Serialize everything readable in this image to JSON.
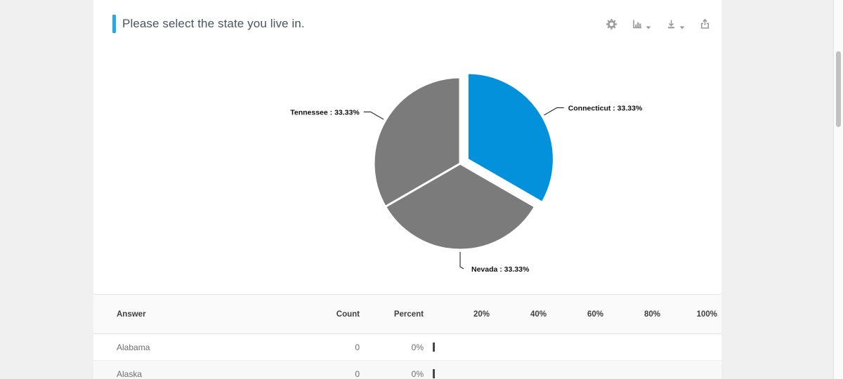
{
  "header": {
    "title": "Please select the state you live in.",
    "accent_color": "#29a9e1",
    "toolbar": {
      "settings_label": "settings",
      "chart_type_label": "chart type",
      "download_label": "download",
      "export_label": "export"
    }
  },
  "chart_data": {
    "type": "pie",
    "title": "Please select the state you live in.",
    "direction": "clockwise",
    "start_angle_deg": 0,
    "legend_position": "none",
    "slices": [
      {
        "label": "Connecticut",
        "value": 33.33,
        "display": "Connecticut : 33.33%",
        "color": "#0291da",
        "exploded": true
      },
      {
        "label": "Nevada",
        "value": 33.33,
        "display": "Nevada : 33.33%",
        "color": "#7b7b7b",
        "exploded": false
      },
      {
        "label": "Tennessee",
        "value": 33.33,
        "display": "Tennessee : 33.33%",
        "color": "#7b7b7b",
        "exploded": false
      }
    ]
  },
  "table": {
    "columns": {
      "answer": "Answer",
      "count": "Count",
      "percent": "Percent"
    },
    "grid_labels": [
      "20%",
      "40%",
      "60%",
      "80%",
      "100%"
    ],
    "rows": [
      {
        "answer": "Alabama",
        "count": "0",
        "percent": "0%",
        "bar_pct": 0
      },
      {
        "answer": "Alaska",
        "count": "0",
        "percent": "0%",
        "bar_pct": 0
      }
    ]
  },
  "colors": {
    "page_bg": "#f0f0f0",
    "bar_tick": "#474747",
    "slice_stroke": "#ffffff"
  }
}
